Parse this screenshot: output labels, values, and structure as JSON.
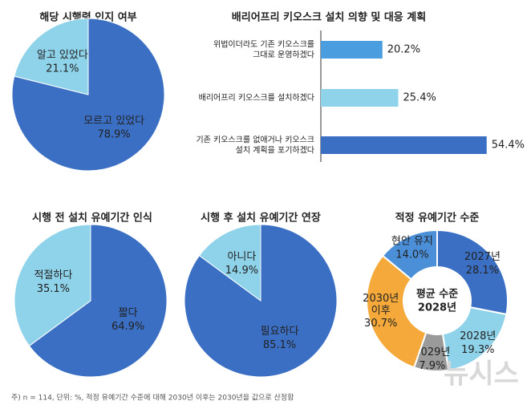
{
  "chart_data": [
    {
      "type": "pie",
      "title": "해당 시행령 인지 여부",
      "categories": [
        "모르고 있었다",
        "알고 있었다"
      ],
      "values": [
        78.9,
        21.1
      ],
      "value_labels": [
        "78.9%",
        "21.1%"
      ],
      "colors": [
        "#3a6fc4",
        "#8fd3ea"
      ]
    },
    {
      "type": "bar",
      "orientation": "horizontal",
      "title": "배리어프리 키오스크 설치 의향 및 대응 계획",
      "categories": [
        "위법이더라도 기존 키오스크를\n그대로 운영하겠다",
        "배리어프리 키오스크를 설치하겠다",
        "기존 키오스크를 없애거나 키오스크\n설치 계획을 포기하겠다"
      ],
      "values": [
        20.2,
        25.4,
        54.4
      ],
      "value_labels": [
        "20.2%",
        "25.4%",
        "54.4%"
      ],
      "colors": [
        "#4a9ee0",
        "#8fd3ea",
        "#3a6fc4"
      ]
    },
    {
      "type": "pie",
      "title": "시행 전 설치 유예기간 인식",
      "categories": [
        "짧다",
        "적절하다"
      ],
      "values": [
        64.9,
        35.1
      ],
      "value_labels": [
        "64.9%",
        "35.1%"
      ],
      "colors": [
        "#3a6fc4",
        "#8fd3ea"
      ]
    },
    {
      "type": "pie",
      "title": "시행 후 설치 유예기간 연장",
      "categories": [
        "필요하다",
        "아니다"
      ],
      "values": [
        85.1,
        14.9
      ],
      "value_labels": [
        "85.1%",
        "14.9%"
      ],
      "colors": [
        "#3a6fc4",
        "#8fd3ea"
      ]
    },
    {
      "type": "donut",
      "title": "적정 유예기간 수준",
      "center_label": "평균 수준\n2028년",
      "categories": [
        "2027년",
        "2028년",
        "2029년",
        "2030년\n이후",
        "현안 유지"
      ],
      "values": [
        28.1,
        19.3,
        7.9,
        30.7,
        14.0
      ],
      "value_labels": [
        "28.1%",
        "19.3%",
        "7.9%",
        "30.7%",
        "14.0%"
      ],
      "colors": [
        "#3a6fc4",
        "#8fd3ea",
        "#9a9a9a",
        "#f4a93a",
        "#4a8fd8"
      ]
    }
  ],
  "footnote": "주) n = 114, 단위: %, 적정 유예기간 수준에 대해 2030년 이후는 2030년을 값으로 산정함",
  "watermark": "뉴시스"
}
